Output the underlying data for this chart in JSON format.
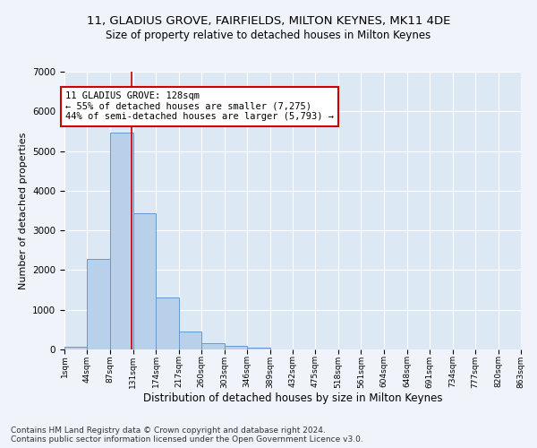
{
  "title1": "11, GLADIUS GROVE, FAIRFIELDS, MILTON KEYNES, MK11 4DE",
  "title2": "Size of property relative to detached houses in Milton Keynes",
  "xlabel": "Distribution of detached houses by size in Milton Keynes",
  "ylabel": "Number of detached properties",
  "bar_values": [
    75,
    2270,
    5470,
    3440,
    1310,
    460,
    160,
    90,
    55,
    0,
    0,
    0,
    0,
    0,
    0,
    0,
    0,
    0,
    0,
    0
  ],
  "bin_edges": [
    1,
    44,
    87,
    131,
    174,
    217,
    260,
    303,
    346,
    389,
    432,
    475,
    518,
    561,
    604,
    648,
    691,
    734,
    777,
    820,
    863
  ],
  "tick_labels": [
    "1sqm",
    "44sqm",
    "87sqm",
    "131sqm",
    "174sqm",
    "217sqm",
    "260sqm",
    "303sqm",
    "346sqm",
    "389sqm",
    "432sqm",
    "475sqm",
    "518sqm",
    "561sqm",
    "604sqm",
    "648sqm",
    "691sqm",
    "734sqm",
    "777sqm",
    "820sqm",
    "863sqm"
  ],
  "bar_color": "#b8d0ea",
  "bar_edge_color": "#6699cc",
  "vline_x": 128,
  "vline_color": "#cc0000",
  "ylim": [
    0,
    7000
  ],
  "yticks": [
    0,
    1000,
    2000,
    3000,
    4000,
    5000,
    6000,
    7000
  ],
  "annotation_text": "11 GLADIUS GROVE: 128sqm\n← 55% of detached houses are smaller (7,275)\n44% of semi-detached houses are larger (5,793) →",
  "annotation_box_color": "#ffffff",
  "annotation_box_edge": "#cc0000",
  "bg_color": "#dde8f5",
  "fig_bg_color": "#f0f4fa",
  "footer_text": "Contains HM Land Registry data © Crown copyright and database right 2024.\nContains public sector information licensed under the Open Government Licence v3.0.",
  "grid_color": "#ffffff",
  "title1_fontsize": 9.5,
  "title2_fontsize": 8.5,
  "xlabel_fontsize": 8.5,
  "ylabel_fontsize": 8,
  "annotation_fontsize": 7.5,
  "footer_fontsize": 6.5
}
